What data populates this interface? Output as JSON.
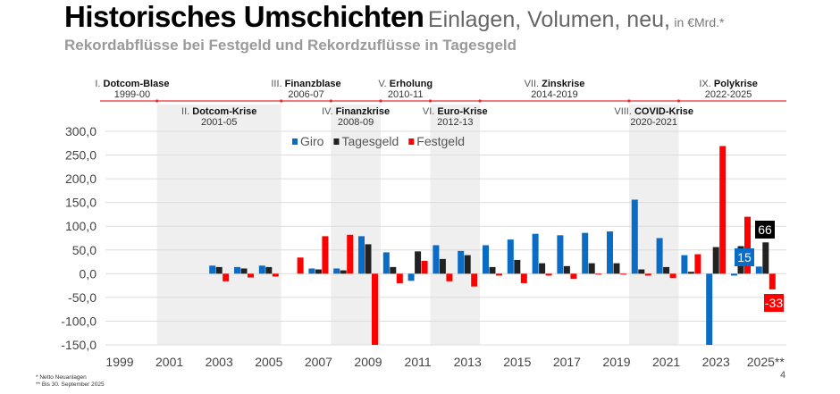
{
  "header": {
    "title": "Historisches Umschichten",
    "title_suffix": "Einlagen, Volumen, neu,",
    "unit": "in €Mrd.*",
    "subtitle": "Rekordabflüsse bei Festgeld und Rekordzuflüsse in Tagesgeld"
  },
  "eras": [
    {
      "num": "I.",
      "name": "Dotcom-Blase",
      "years": "1999-00",
      "row": "top",
      "from": 1999,
      "to": 2000,
      "shaded": false
    },
    {
      "num": "II.",
      "name": "Dotcom-Krise",
      "years": "2001-05",
      "row": "bottom",
      "from": 2001,
      "to": 2005,
      "shaded": true
    },
    {
      "num": "III.",
      "name": "Finanzblase",
      "years": "2006-07",
      "row": "top",
      "from": 2006,
      "to": 2007,
      "shaded": false
    },
    {
      "num": "IV.",
      "name": "Finanzkrise",
      "years": "2008-09",
      "row": "bottom",
      "from": 2008,
      "to": 2009,
      "shaded": true
    },
    {
      "num": "V.",
      "name": "Erholung",
      "years": "2010-11",
      "row": "top",
      "from": 2010,
      "to": 2011,
      "shaded": false
    },
    {
      "num": "VI.",
      "name": "Euro-Krise",
      "years": "2012-13",
      "row": "bottom",
      "from": 2012,
      "to": 2013,
      "shaded": true
    },
    {
      "num": "VII.",
      "name": "Zinskrise",
      "years": "2014-2019",
      "row": "top",
      "from": 2014,
      "to": 2019,
      "shaded": false
    },
    {
      "num": "VIII.",
      "name": "COVID-Krise",
      "years": "2020-2021",
      "row": "bottom",
      "from": 2020,
      "to": 2021,
      "shaded": true
    },
    {
      "num": "IX.",
      "name": "Polykrise",
      "years": "2022-2025",
      "row": "top",
      "from": 2022,
      "to": 2025,
      "shaded": false
    }
  ],
  "chart_data": {
    "type": "bar",
    "ylim": [
      -150,
      300
    ],
    "yticks": [
      "300,0",
      "250,0",
      "200,0",
      "150,0",
      "100,0",
      "50,0",
      "0,0",
      "-50,0",
      "-100,0",
      "-150,0"
    ],
    "ytick_values": [
      300,
      250,
      200,
      150,
      100,
      50,
      0,
      -50,
      -100,
      -150
    ],
    "xtick_labels": [
      "1999",
      "2001",
      "2003",
      "2005",
      "2007",
      "2009",
      "2011",
      "2013",
      "2015",
      "2017",
      "2019",
      "2021",
      "2023",
      "2025**"
    ],
    "xtick_years": [
      1999,
      2001,
      2003,
      2005,
      2007,
      2009,
      2011,
      2013,
      2015,
      2017,
      2019,
      2021,
      2023,
      2025
    ],
    "grid": true,
    "legend_position": "top-center",
    "categories": [
      1999,
      2000,
      2001,
      2002,
      2003,
      2004,
      2005,
      2006,
      2007,
      2008,
      2009,
      2010,
      2011,
      2012,
      2013,
      2014,
      2015,
      2016,
      2017,
      2018,
      2019,
      2020,
      2021,
      2022,
      2023,
      2024,
      2025
    ],
    "series": [
      {
        "name": "Giro",
        "color": "#0a6cc4",
        "values": [
          0,
          0,
          0,
          0,
          17,
          14,
          17,
          0,
          11,
          11,
          79,
          45,
          -15,
          60,
          48,
          60,
          72,
          84,
          81,
          86,
          89,
          156,
          75,
          39,
          -150,
          -4,
          15
        ]
      },
      {
        "name": "Tagesgeld",
        "color": "#222222",
        "values": [
          0,
          0,
          0,
          0,
          14,
          11,
          14,
          0,
          9,
          7,
          62,
          14,
          47,
          31,
          39,
          14,
          29,
          22,
          16,
          22,
          22,
          9,
          14,
          4,
          56,
          58,
          66
        ]
      },
      {
        "name": "Festgeld",
        "color": "#ff0000",
        "values": [
          0,
          0,
          0,
          0,
          -16,
          -8,
          -6,
          34,
          79,
          82,
          -150,
          -20,
          27,
          -16,
          -27,
          -4,
          -20,
          -4,
          -11,
          -2,
          -2,
          -4,
          -9,
          41,
          269,
          120,
          -33
        ]
      }
    ],
    "data_labels": [
      {
        "series": "Tagesgeld",
        "year": 2025,
        "text": "66"
      },
      {
        "series": "Giro",
        "year": 2025,
        "text": "15"
      },
      {
        "series": "Festgeld",
        "year": 2025,
        "text": "-33"
      }
    ]
  },
  "footnotes": [
    "* Netto Neuanlagen",
    "** Bis 30. September 2025"
  ],
  "page_number": "4"
}
